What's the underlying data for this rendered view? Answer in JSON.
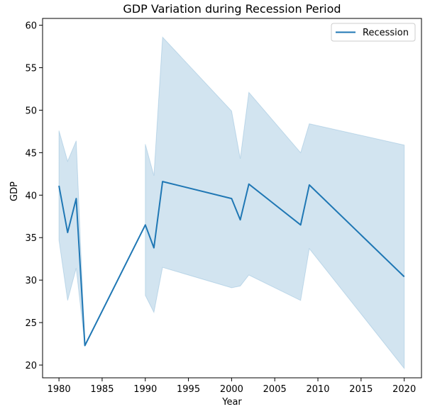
{
  "chart_data": {
    "type": "line",
    "title": "GDP Variation during Recession Period",
    "xlabel": "Year",
    "ylabel": "GDP",
    "xlim": [
      1978.1,
      2022.0
    ],
    "ylim": [
      18.5,
      60.8
    ],
    "xticks": [
      1980,
      1985,
      1990,
      1995,
      2000,
      2005,
      2010,
      2015,
      2020
    ],
    "yticks": [
      20,
      25,
      30,
      35,
      40,
      45,
      50,
      55,
      60
    ],
    "grid": false,
    "legend_position": "top-right",
    "series": [
      {
        "name": "Recession",
        "color": "#1f77b4",
        "band_color": "#1f77b4",
        "segments": [
          {
            "x": [
              1980,
              1981,
              1982,
              1983
            ],
            "y": [
              41.1,
              35.6,
              39.6,
              22.3
            ],
            "lower": [
              34.7,
              27.6,
              31.4,
              22.3
            ],
            "upper": [
              47.6,
              44.0,
              46.4,
              22.3
            ]
          },
          {
            "x": [
              1990,
              1991,
              1992,
              2000,
              2001,
              2002,
              2008,
              2009,
              2020
            ],
            "y": [
              36.5,
              33.8,
              41.6,
              39.6,
              37.1,
              41.3,
              36.5,
              41.2,
              30.4
            ],
            "lower": [
              28.2,
              26.2,
              31.5,
              29.1,
              29.3,
              30.6,
              27.6,
              33.7,
              19.6
            ],
            "upper": [
              46.0,
              42.3,
              58.6,
              49.9,
              44.3,
              52.1,
              45.0,
              48.4,
              45.9
            ]
          }
        ],
        "connector": {
          "x": [
            1983,
            1990
          ],
          "y": [
            22.3,
            36.5
          ]
        }
      }
    ]
  }
}
